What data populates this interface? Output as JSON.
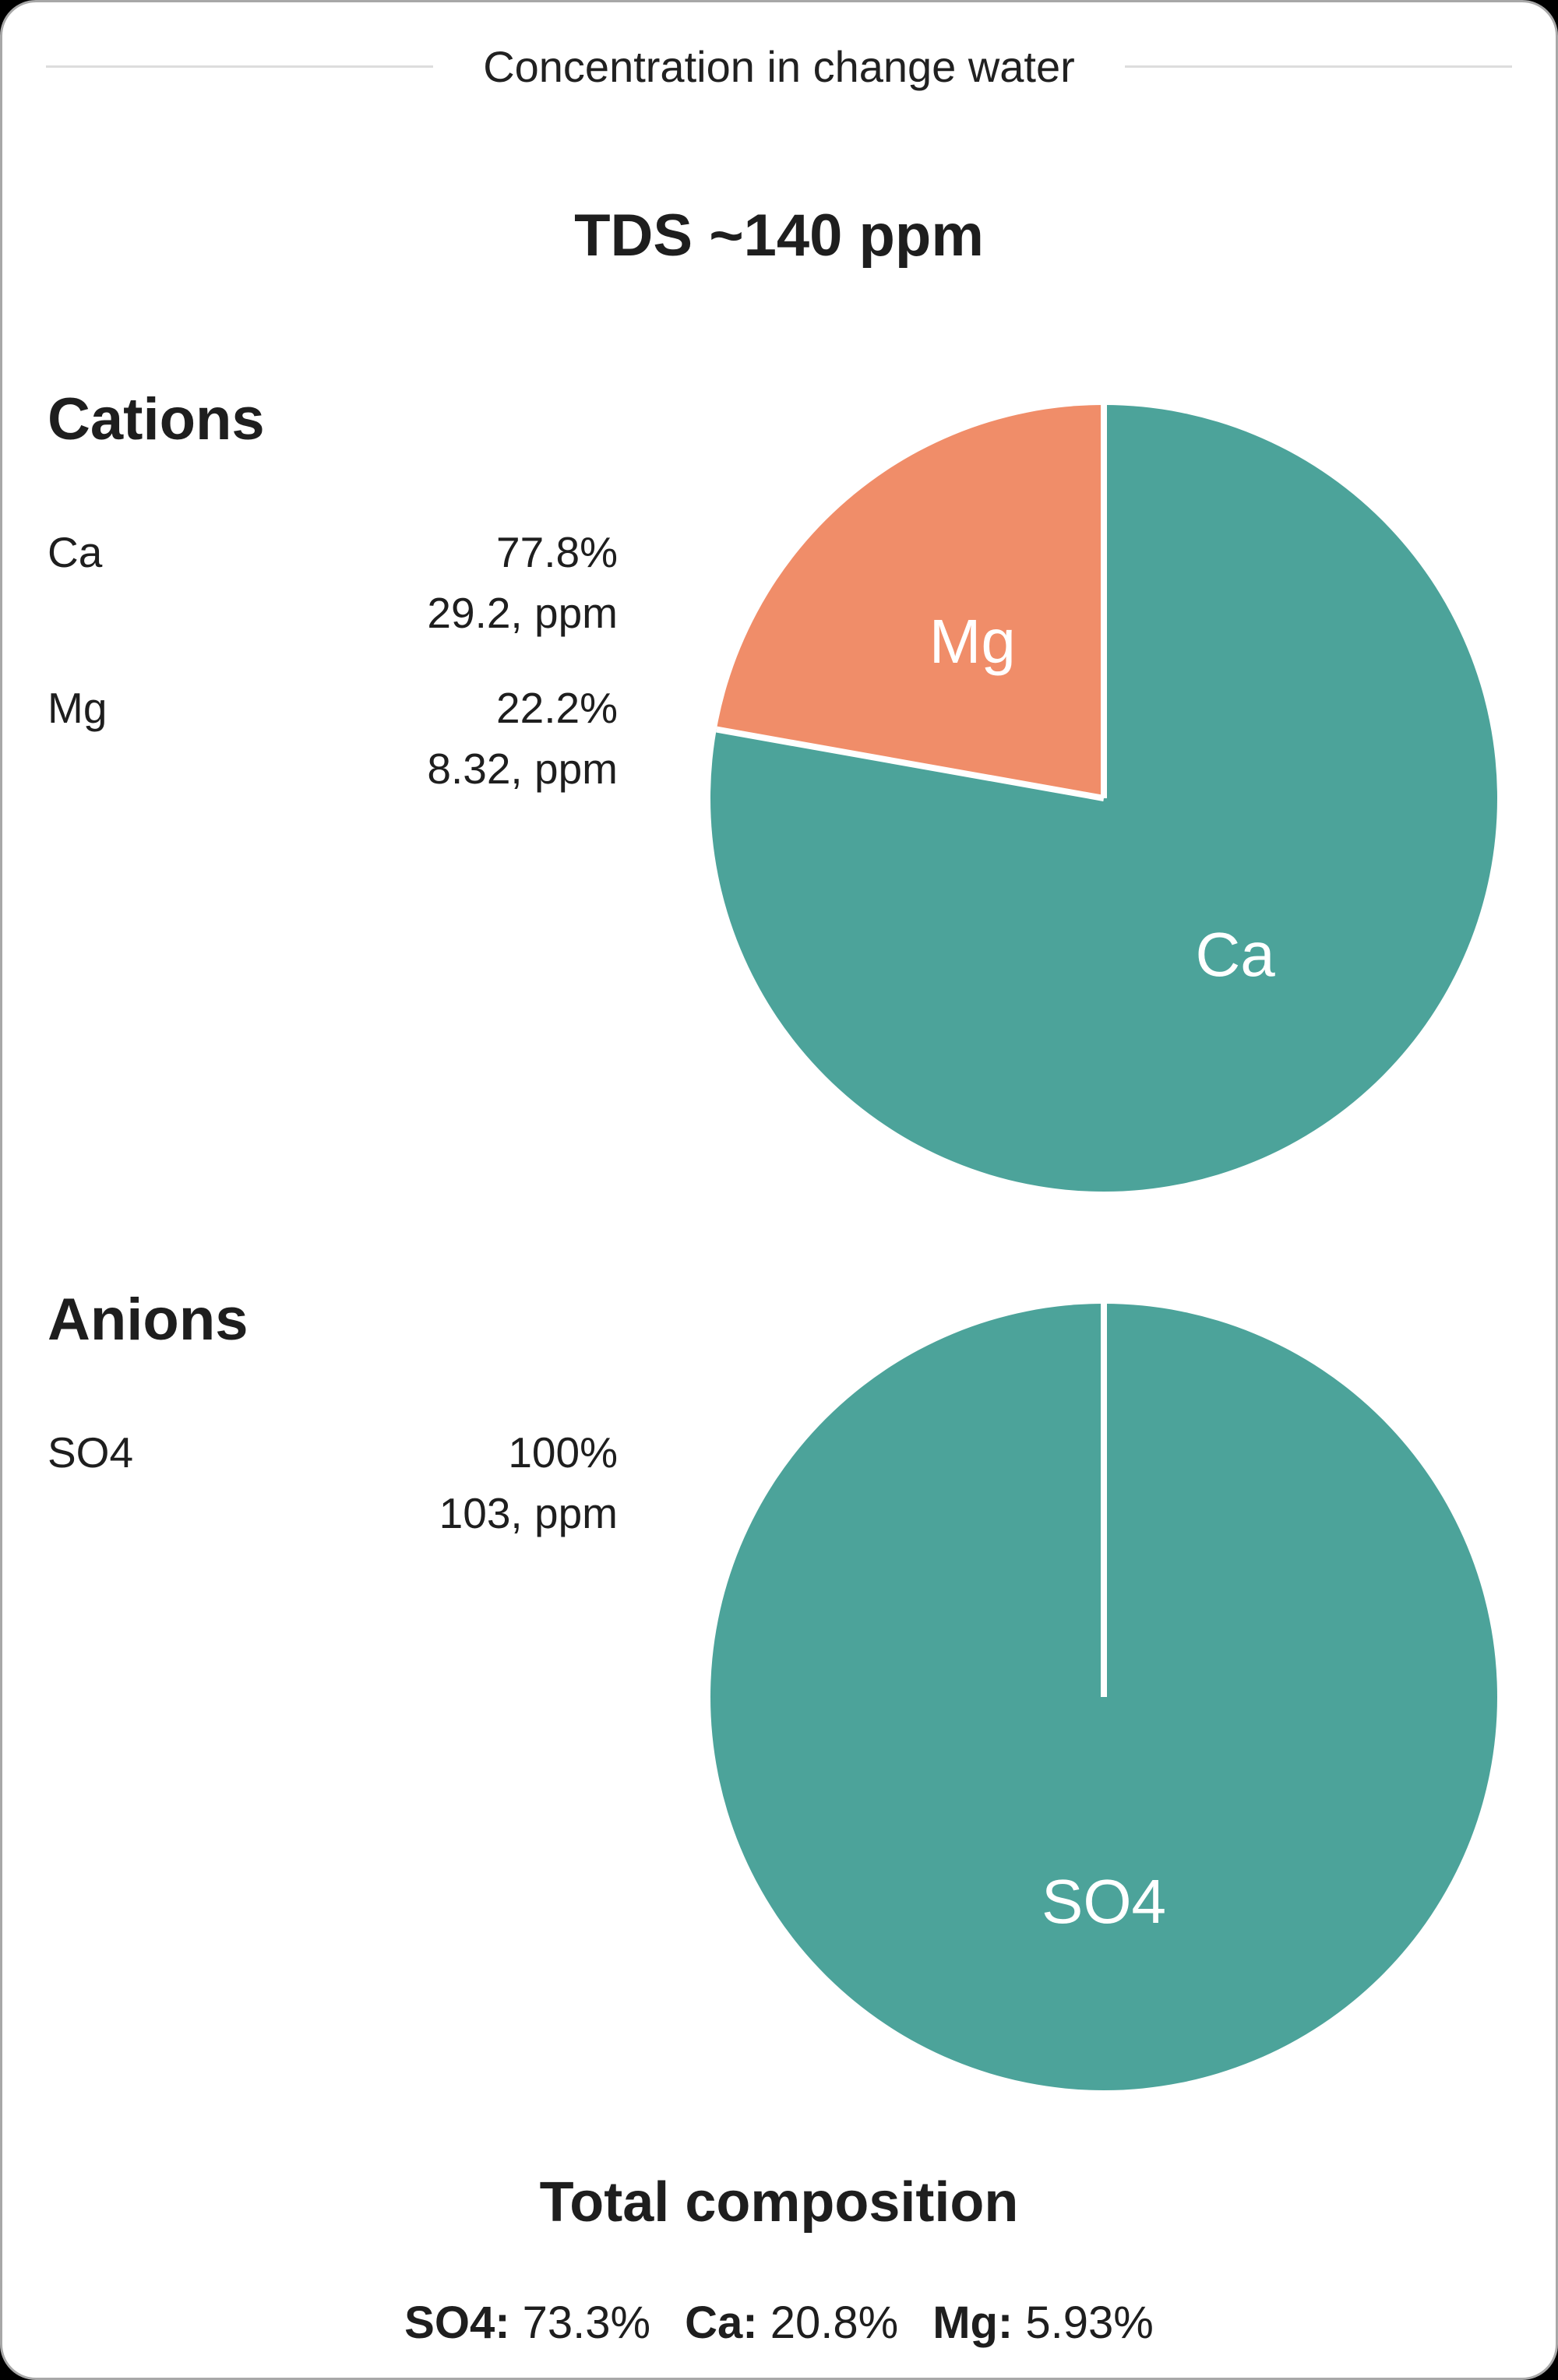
{
  "card": {
    "legend": "Concentration in change water",
    "tds": "TDS ~140 ppm"
  },
  "sections": [
    {
      "id": "cations",
      "heading": "Cations",
      "rows": [
        {
          "label": "Ca",
          "percent": "77.8%",
          "ppm": "29.2, ppm"
        },
        {
          "label": "Mg",
          "percent": "22.2%",
          "ppm": "8.32, ppm"
        }
      ]
    },
    {
      "id": "anions",
      "heading": "Anions",
      "rows": [
        {
          "label": "SO4",
          "percent": "100%",
          "ppm": "103, ppm"
        }
      ]
    }
  ],
  "chart_data": [
    {
      "type": "pie",
      "title": "Cations",
      "start_angle_deg": 0,
      "direction": "clockwise",
      "divider_color": "#ffffff",
      "slices": [
        {
          "label": "Ca",
          "value": 77.8,
          "ppm": 29.2,
          "color": "#4CA39A"
        },
        {
          "label": "Mg",
          "value": 22.2,
          "ppm": 8.32,
          "color": "#F08D69"
        }
      ]
    },
    {
      "type": "pie",
      "title": "Anions",
      "start_angle_deg": 0,
      "direction": "clockwise",
      "divider_color": "#ffffff",
      "slices": [
        {
          "label": "SO4",
          "value": 100,
          "ppm": 103,
          "color": "#4CA39A"
        }
      ]
    }
  ],
  "footer": {
    "title": "Total composition",
    "items": [
      {
        "label": "SO4:",
        "value": "73.3%"
      },
      {
        "label": "Ca:",
        "value": "20.8%"
      },
      {
        "label": "Mg:",
        "value": "5.93%"
      }
    ]
  },
  "colors": {
    "teal": "#4CA39A",
    "salmon": "#F08D69",
    "text": "#1e1e1e",
    "legend_line": "#dddddd",
    "card_border": "#a8a8a8",
    "card_background": "#ffffff",
    "page_background": "#000000",
    "pie_label_text": "#ffffff"
  }
}
